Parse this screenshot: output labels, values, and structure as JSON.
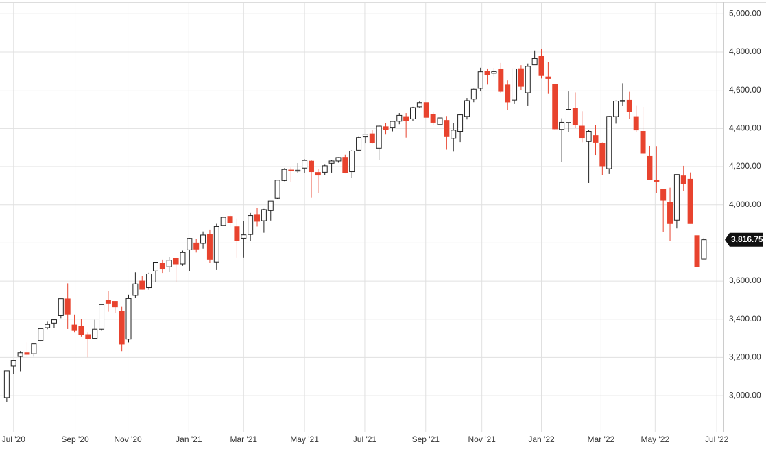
{
  "chart_data": {
    "type": "candlestick",
    "up_color": "#ffffff",
    "down_color": "#e8432e",
    "grid": true,
    "ylim": [
      2810,
      5055
    ],
    "xlim": [
      -1,
      105.9
    ],
    "yticks": [
      {
        "value": 3000,
        "label": "3,000.00"
      },
      {
        "value": 3200,
        "label": "3,200.00"
      },
      {
        "value": 3400,
        "label": "3,400.00"
      },
      {
        "value": 3600,
        "label": "3,600.00"
      },
      {
        "value": 3800,
        "label": "3,800.00"
      },
      {
        "value": 4000,
        "label": "4,000.00"
      },
      {
        "value": 4200,
        "label": "4,200.00"
      },
      {
        "value": 4400,
        "label": "4,400.00"
      },
      {
        "value": 4600,
        "label": "4,600.00"
      },
      {
        "value": 4800,
        "label": "4,800.00"
      },
      {
        "value": 5000,
        "label": "5,000.00"
      }
    ],
    "xticks": [
      {
        "value": 1.0,
        "label": "Jul '20"
      },
      {
        "value": 10.1,
        "label": "Sep '20"
      },
      {
        "value": 17.9,
        "label": "Nov '20"
      },
      {
        "value": 26.9,
        "label": "Jan '21"
      },
      {
        "value": 35.0,
        "label": "Mar '21"
      },
      {
        "value": 44.0,
        "label": "May '21"
      },
      {
        "value": 52.9,
        "label": "Jul '21"
      },
      {
        "value": 61.9,
        "label": "Sep '21"
      },
      {
        "value": 70.2,
        "label": "Nov '21"
      },
      {
        "value": 79.0,
        "label": "Jan '22"
      },
      {
        "value": 87.8,
        "label": "Mar '22"
      },
      {
        "value": 95.8,
        "label": "May '22"
      },
      {
        "value": 104.9,
        "label": "Jul '22"
      }
    ],
    "last_price": {
      "value": 3816.75,
      "label": "3,816.75"
    },
    "open": [
      2990,
      3155,
      3205,
      3224,
      3219,
      3289,
      3356,
      3380,
      3419,
      3507,
      3370,
      3363,
      3320,
      3300,
      3348,
      3500,
      3494,
      3441,
      3296,
      3525,
      3600,
      3566,
      3653,
      3694,
      3675,
      3720,
      3690,
      3764,
      3800,
      3798,
      3844,
      3700,
      3892,
      3939,
      3885,
      3825,
      3844,
      3949,
      3916,
      3969,
      4034,
      4127,
      4182,
      4176,
      4192,
      4228,
      4169,
      4170,
      4217,
      4229,
      4248,
      4173,
      4285,
      4356,
      4372,
      4296,
      4409,
      4406,
      4438,
      4462,
      4450,
      4513,
      4535,
      4474,
      4420,
      4442,
      4348,
      4385,
      4463,
      4553,
      4610,
      4701,
      4689,
      4712,
      4628,
      4548,
      4713,
      4588,
      4733,
      4778,
      4670,
      4632,
      4395,
      4431,
      4505,
      4412,
      4332,
      4363,
      4323,
      4189,
      4462,
      4541,
      4547,
      4462,
      4385,
      4256,
      4130,
      4081,
      4013,
      3919,
      4151,
      4134,
      3838,
      3715
    ],
    "high": [
      3130,
      3185,
      3233,
      3280,
      3272,
      3352,
      3387,
      3399,
      3509,
      3588,
      3425,
      3402,
      3330,
      3397,
      3479,
      3550,
      3496,
      3465,
      3529,
      3646,
      3628,
      3644,
      3699,
      3712,
      3726,
      3723,
      3760,
      3826,
      3823,
      3860,
      3870,
      3900,
      3934,
      3950,
      3928,
      3914,
      3960,
      3983,
      3978,
      4020,
      4130,
      4191,
      4195,
      4218,
      4238,
      4236,
      4187,
      4213,
      4234,
      4249,
      4262,
      4286,
      4356,
      4372,
      4393,
      4415,
      4430,
      4440,
      4480,
      4480,
      4513,
      4545,
      4535,
      4486,
      4465,
      4465,
      4429,
      4475,
      4559,
      4608,
      4718,
      4714,
      4717,
      4743,
      4652,
      4713,
      4731,
      4740,
      4808,
      4818,
      4749,
      4632,
      4453,
      4595,
      4590,
      4490,
      4393,
      4416,
      4327,
      4465,
      4546,
      4637,
      4593,
      4521,
      4513,
      4308,
      4307,
      4082,
      4090,
      4158,
      4204,
      4169,
      3838,
      3827
    ],
    "low": [
      2965,
      3115,
      3128,
      3200,
      3204,
      3284,
      3348,
      3355,
      3405,
      3349,
      3330,
      3310,
      3201,
      3295,
      3340,
      3440,
      3435,
      3233,
      3279,
      3511,
      3555,
      3555,
      3594,
      3643,
      3647,
      3597,
      3680,
      3651,
      3750,
      3770,
      3694,
      3658,
      3890,
      3885,
      3723,
      3723,
      3810,
      3886,
      3853,
      3917,
      4030,
      4124,
      4118,
      4165,
      4168,
      4036,
      4061,
      4155,
      4168,
      4220,
      4164,
      4140,
      4283,
      4322,
      4321,
      4233,
      4368,
      4385,
      4422,
      4352,
      4440,
      4509,
      4457,
      4418,
      4305,
      4288,
      4278,
      4329,
      4447,
      4537,
      4595,
      4630,
      4672,
      4585,
      4495,
      4531,
      4600,
      4520,
      4733,
      4662,
      4582,
      4395,
      4222,
      4380,
      4401,
      4328,
      4114,
      4261,
      4157,
      4161,
      4425,
      4517,
      4450,
      4381,
      4267,
      4132,
      4062,
      3859,
      3810,
      3876,
      4074,
      3900,
      3637,
      3715
    ],
    "close": [
      3130,
      3185,
      3224,
      3216,
      3271,
      3351,
      3373,
      3397,
      3508,
      3427,
      3341,
      3319,
      3298,
      3348,
      3477,
      3484,
      3465,
      3270,
      3509,
      3585,
      3557,
      3638,
      3699,
      3663,
      3709,
      3690,
      3750,
      3824,
      3768,
      3841,
      3714,
      3886,
      3934,
      3906,
      3811,
      3842,
      3943,
      3913,
      3974,
      4020,
      4129,
      4185,
      4180,
      4181,
      4232,
      4173,
      4155,
      4204,
      4229,
      4247,
      4166,
      4281,
      4352,
      4370,
      4327,
      4412,
      4395,
      4437,
      4468,
      4441,
      4509,
      4535,
      4458,
      4432,
      4455,
      4357,
      4391,
      4471,
      4545,
      4605,
      4697,
      4682,
      4698,
      4595,
      4538,
      4712,
      4620,
      4725,
      4766,
      4677,
      4662,
      4398,
      4432,
      4500,
      4418,
      4349,
      4385,
      4328,
      4204,
      4463,
      4543,
      4546,
      4488,
      4392,
      4272,
      4132,
      4123,
      4024,
      3901,
      4158,
      4109,
      3901,
      3675,
      3817
    ]
  }
}
